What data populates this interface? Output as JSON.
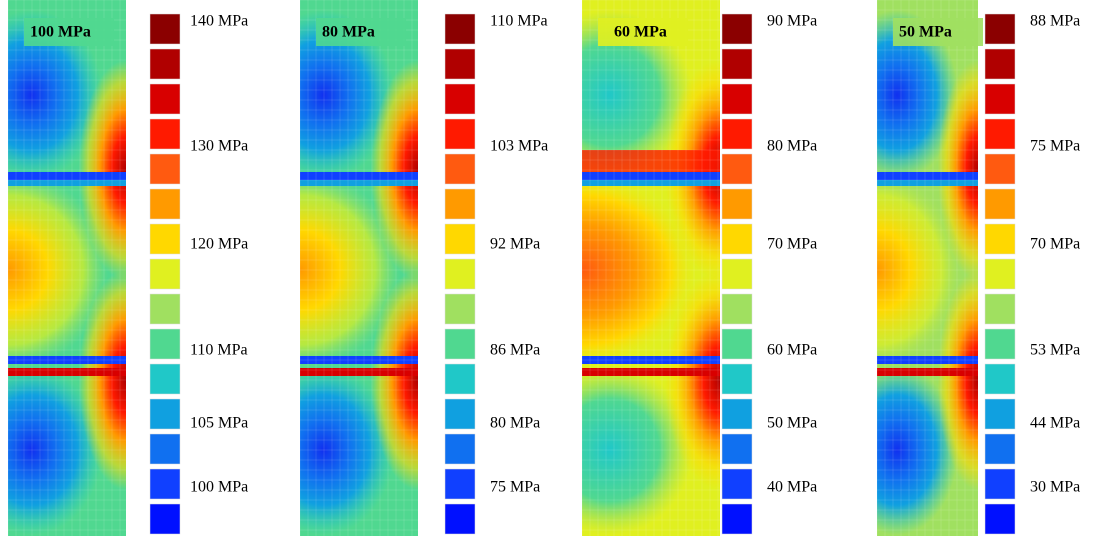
{
  "panels": [
    {
      "title": "100 MPa",
      "labels": [
        "140 MPa",
        "130 MPa",
        "120 MPa",
        "110 MPa",
        "105 MPa",
        "100 MPa"
      ]
    },
    {
      "title": "80 MPa",
      "labels": [
        "110 MPa",
        "103 MPa",
        "92 MPa",
        "86 MPa",
        "80 MPa",
        "75 MPa"
      ]
    },
    {
      "title": "60 MPa",
      "labels": [
        "90 MPa",
        "80 MPa",
        "70 MPa",
        "60 MPa",
        "50 MPa",
        "40 MPa"
      ]
    },
    {
      "title": "50 MPa",
      "labels": [
        "88 MPa",
        "75 MPa",
        "70 MPa",
        "53 MPa",
        "44 MPa",
        "30 MPa"
      ]
    }
  ]
}
